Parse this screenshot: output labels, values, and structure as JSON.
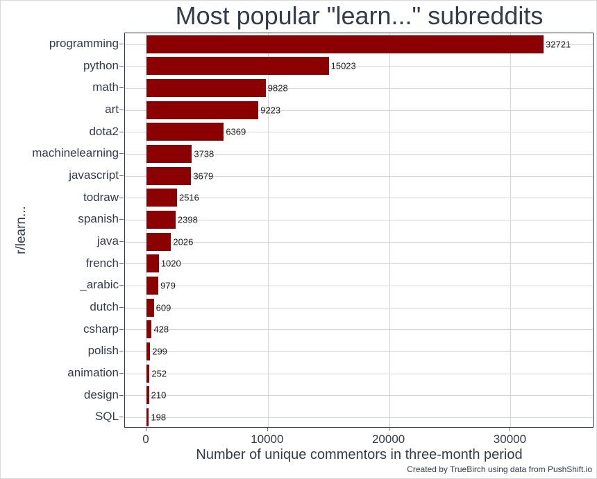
{
  "chart_data": {
    "type": "bar",
    "orientation": "horizontal",
    "title": "Most popular \"learn...\" subreddits",
    "categories": [
      "programming",
      "python",
      "math",
      "art",
      "dota2",
      "machinelearning",
      "javascript",
      "todraw",
      "spanish",
      "java",
      "french",
      "_arabic",
      "dutch",
      "csharp",
      "polish",
      "animation",
      "design",
      "SQL"
    ],
    "values": [
      32721,
      15023,
      9828,
      9223,
      6369,
      3738,
      3679,
      2516,
      2398,
      2026,
      1020,
      979,
      609,
      428,
      299,
      252,
      210,
      198
    ],
    "xlabel": "Number of unique commentors in three-month period",
    "ylabel": "r/learn...",
    "caption": "Created by TrueBirch using data from PushShift.io",
    "xticks": [
      0,
      10000,
      20000,
      30000
    ],
    "xtick_labels": [
      "0",
      "10000",
      "20000",
      "30000"
    ],
    "xlim": [
      0,
      36800
    ],
    "grid": "major vertical gridlines at x ticks, horizontal gridline at each category center",
    "legend": "none",
    "value_labels": "shown at end of each bar"
  },
  "colors": {
    "bar": "#8b0000",
    "panel_border": "#2d3848",
    "gridline": "#d4d4d4",
    "axis_text": "#333b4b",
    "value_text": "#1b1b1b",
    "tick_mark": "#6b6b6b",
    "background": "#ffffff"
  }
}
